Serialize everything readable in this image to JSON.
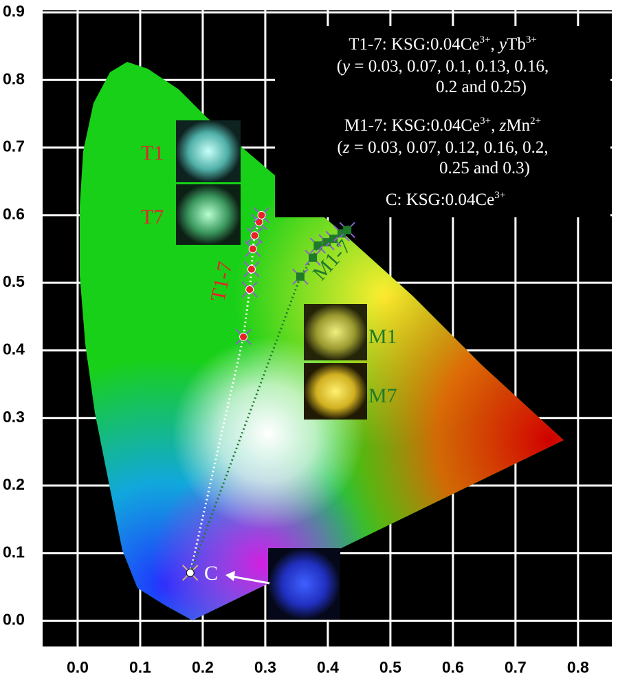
{
  "chart_data": {
    "type": "scatter",
    "xlim": [
      -0.056,
      0.854
    ],
    "ylim": [
      -0.038,
      0.903
    ],
    "xticks": [
      {
        "value": 0,
        "label": "0.0"
      },
      0.1,
      0.2,
      0.3,
      0.4,
      0.5,
      0.6,
      0.7,
      0.8
    ],
    "yticks": [
      {
        "value": 0,
        "label": "0.0"
      },
      0.1,
      0.2,
      0.3,
      0.4,
      0.5,
      0.6,
      0.7,
      0.8,
      0.9
    ],
    "grid": true,
    "series": [
      {
        "name": "T1-7",
        "color": "#e8202a",
        "x": [
          0.265,
          0.275,
          0.278,
          0.28,
          0.283,
          0.29,
          0.294
        ],
        "values": [
          0.42,
          0.49,
          0.52,
          0.55,
          0.57,
          0.59,
          0.6
        ]
      },
      {
        "name": "M1-7",
        "color": "#1f7a2a",
        "x": [
          0.356,
          0.376,
          0.384,
          0.398,
          0.409,
          0.422,
          0.431
        ],
        "values": [
          0.509,
          0.537,
          0.555,
          0.56,
          0.565,
          0.573,
          0.578
        ]
      },
      {
        "name": "C",
        "color": "#ffffff",
        "x": [
          0.18
        ],
        "values": [
          0.071
        ]
      }
    ],
    "photo_labels": [
      "T1",
      "T7",
      "M1",
      "M7"
    ],
    "box_text": [
      [
        "T1-7: KSG:0.04Ce",
        "3+",
        ", ",
        "y",
        "Tb",
        "3+"
      ],
      [
        "(",
        "y",
        " = 0.03, 0.07, 0.1, 0.13, 0.16,"
      ],
      [
        "0.2 and 0.25)"
      ],
      [
        "M1-7: KSG:0.04Ce",
        "3+",
        ", ",
        "z",
        "Mn",
        "2+"
      ],
      [
        "(",
        "z",
        " = 0.03, 0.07, 0.12, 0.16, 0.2,"
      ],
      [
        "0.25 and 0.3)"
      ],
      [
        "C: KSG:0.04Ce",
        "3+"
      ]
    ]
  }
}
